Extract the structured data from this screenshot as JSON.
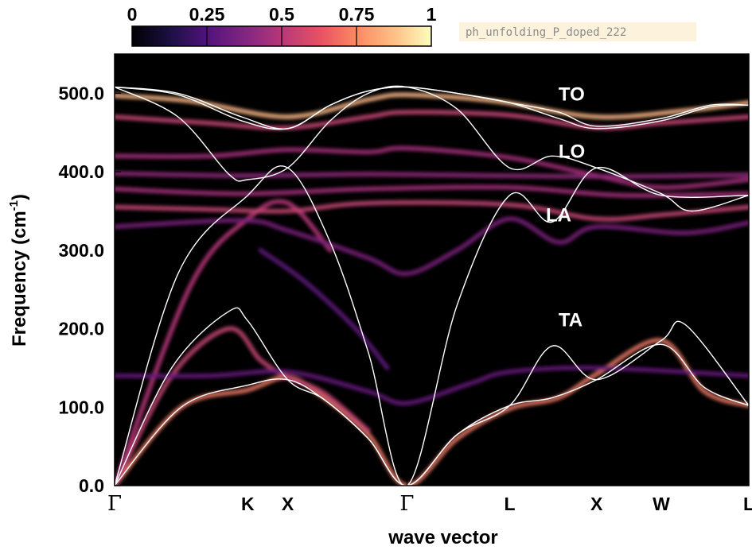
{
  "chart_data": {
    "type": "band-structure",
    "title": "ph_unfolding_P_doped_222",
    "xlabel": "wave vector",
    "ylabel": "Frequency",
    "ylabel_unit_base": "(cm",
    "ylabel_unit_exp": "-1",
    "ylabel_unit_close": ")",
    "ylim": [
      0,
      550
    ],
    "yticks": [
      0,
      100,
      200,
      300,
      400,
      500
    ],
    "ytick_labels": [
      "0.0",
      "100.0",
      "200.0",
      "300.0",
      "400.0",
      "500.0"
    ],
    "xticks": [
      {
        "label": "Γ",
        "pos": 0.0
      },
      {
        "label": "K",
        "pos": 0.21
      },
      {
        "label": "X",
        "pos": 0.273
      },
      {
        "label": "Γ",
        "pos": 0.461
      },
      {
        "label": "L",
        "pos": 0.623
      },
      {
        "label": "X",
        "pos": 0.76
      },
      {
        "label": "W",
        "pos": 0.862
      },
      {
        "label": "L",
        "pos": 1.0
      }
    ],
    "colorbar": {
      "range": [
        0,
        1
      ],
      "ticks": [
        0,
        0.25,
        0.5,
        0.75,
        1
      ],
      "tick_labels": [
        "0",
        "0.25",
        "0.5",
        "0.75",
        "1"
      ],
      "colormap": "magma"
    },
    "branch_labels": [
      {
        "text": "TO",
        "x": 0.7,
        "freq": 500
      },
      {
        "text": "LO",
        "x": 0.7,
        "freq": 427
      },
      {
        "text": "LA",
        "x": 0.68,
        "freq": 346
      },
      {
        "text": "TA",
        "x": 0.7,
        "freq": 212
      }
    ],
    "host_branches": [
      {
        "name": "TA1",
        "points": [
          [
            0.0,
            0
          ],
          [
            0.105,
            100
          ],
          [
            0.21,
            128
          ],
          [
            0.273,
            135
          ],
          [
            0.33,
            110
          ],
          [
            0.4,
            60
          ],
          [
            0.461,
            0
          ],
          [
            0.54,
            65
          ],
          [
            0.623,
            102
          ],
          [
            0.69,
            112
          ],
          [
            0.76,
            135
          ],
          [
            0.862,
            180
          ],
          [
            0.93,
            125
          ],
          [
            1.0,
            102
          ]
        ]
      },
      {
        "name": "TA2",
        "points": [
          [
            0.0,
            0
          ],
          [
            0.09,
            150
          ],
          [
            0.18,
            222
          ],
          [
            0.21,
            210
          ],
          [
            0.273,
            135
          ],
          [
            0.33,
            110
          ],
          [
            0.4,
            60
          ],
          [
            0.461,
            0
          ],
          [
            0.54,
            65
          ],
          [
            0.623,
            102
          ],
          [
            0.69,
            178
          ],
          [
            0.76,
            135
          ],
          [
            0.862,
            185
          ],
          [
            0.9,
            205
          ],
          [
            1.0,
            102
          ]
        ]
      },
      {
        "name": "LA",
        "points": [
          [
            0.0,
            0
          ],
          [
            0.1,
            270
          ],
          [
            0.21,
            370
          ],
          [
            0.273,
            405
          ],
          [
            0.34,
            310
          ],
          [
            0.4,
            170
          ],
          [
            0.461,
            0
          ],
          [
            0.54,
            230
          ],
          [
            0.623,
            370
          ],
          [
            0.69,
            336
          ],
          [
            0.76,
            405
          ],
          [
            0.862,
            370
          ],
          [
            1.0,
            370
          ]
        ]
      },
      {
        "name": "LO",
        "points": [
          [
            0.0,
            508
          ],
          [
            0.1,
            470
          ],
          [
            0.18,
            397
          ],
          [
            0.21,
            390
          ],
          [
            0.273,
            405
          ],
          [
            0.34,
            465
          ],
          [
            0.4,
            500
          ],
          [
            0.461,
            508
          ],
          [
            0.54,
            480
          ],
          [
            0.623,
            405
          ],
          [
            0.69,
            420
          ],
          [
            0.76,
            405
          ],
          [
            0.862,
            372
          ],
          [
            0.91,
            350
          ],
          [
            1.0,
            370
          ]
        ]
      },
      {
        "name": "TO1",
        "points": [
          [
            0.0,
            508
          ],
          [
            0.1,
            498
          ],
          [
            0.2,
            465
          ],
          [
            0.273,
            455
          ],
          [
            0.34,
            485
          ],
          [
            0.4,
            503
          ],
          [
            0.461,
            508
          ],
          [
            0.54,
            500
          ],
          [
            0.623,
            488
          ],
          [
            0.7,
            468
          ],
          [
            0.76,
            455
          ],
          [
            0.862,
            465
          ],
          [
            0.94,
            483
          ],
          [
            1.0,
            485
          ]
        ]
      },
      {
        "name": "TO2",
        "points": [
          [
            0.0,
            508
          ],
          [
            0.1,
            500
          ],
          [
            0.2,
            470
          ],
          [
            0.273,
            455
          ],
          [
            0.34,
            485
          ],
          [
            0.4,
            503
          ],
          [
            0.461,
            508
          ],
          [
            0.54,
            500
          ],
          [
            0.623,
            488
          ],
          [
            0.7,
            476
          ],
          [
            0.76,
            458
          ],
          [
            0.862,
            468
          ],
          [
            0.94,
            485
          ],
          [
            1.0,
            485
          ]
        ]
      }
    ],
    "spectral_bands": [
      {
        "name": "ta-glow",
        "intensity": 0.7,
        "points": [
          [
            0.0,
            0
          ],
          [
            0.105,
            100
          ],
          [
            0.21,
            122
          ],
          [
            0.273,
            138
          ],
          [
            0.33,
            112
          ],
          [
            0.4,
            65
          ],
          [
            0.461,
            0
          ],
          [
            0.54,
            60
          ],
          [
            0.623,
            98
          ],
          [
            0.7,
            112
          ],
          [
            0.76,
            142
          ],
          [
            0.862,
            185
          ],
          [
            0.93,
            120
          ],
          [
            1.0,
            102
          ]
        ]
      },
      {
        "name": "ta-upper",
        "intensity": 0.55,
        "points": [
          [
            0.0,
            0
          ],
          [
            0.09,
            140
          ],
          [
            0.18,
            200
          ],
          [
            0.23,
            160
          ],
          [
            0.273,
            138
          ],
          [
            0.33,
            118
          ],
          [
            0.4,
            70
          ]
        ]
      },
      {
        "name": "la-glow",
        "intensity": 0.5,
        "points": [
          [
            0.0,
            0
          ],
          [
            0.12,
            255
          ],
          [
            0.21,
            340
          ],
          [
            0.273,
            360
          ],
          [
            0.34,
            300
          ]
        ]
      },
      {
        "name": "to-glow",
        "intensity": 0.85,
        "points": [
          [
            0.0,
            497
          ],
          [
            0.12,
            490
          ],
          [
            0.273,
            470
          ],
          [
            0.4,
            492
          ],
          [
            0.461,
            498
          ],
          [
            0.6,
            490
          ],
          [
            0.76,
            470
          ],
          [
            0.9,
            478
          ],
          [
            1.0,
            488
          ]
        ]
      },
      {
        "name": "to-second",
        "intensity": 0.55,
        "points": [
          [
            0.0,
            470
          ],
          [
            0.15,
            462
          ],
          [
            0.273,
            456
          ],
          [
            0.4,
            470
          ],
          [
            0.461,
            476
          ],
          [
            0.623,
            472
          ],
          [
            0.76,
            456
          ],
          [
            0.862,
            462
          ],
          [
            1.0,
            470
          ]
        ]
      },
      {
        "name": "lo-glow",
        "intensity": 0.45,
        "points": [
          [
            0.0,
            420
          ],
          [
            0.15,
            420
          ],
          [
            0.273,
            428
          ],
          [
            0.4,
            425
          ],
          [
            0.461,
            430
          ],
          [
            0.623,
            418
          ],
          [
            0.76,
            395
          ],
          [
            0.862,
            380
          ],
          [
            1.0,
            390
          ]
        ]
      },
      {
        "name": "flat-400",
        "intensity": 0.4,
        "points": [
          [
            0.0,
            398
          ],
          [
            0.2,
            395
          ],
          [
            0.4,
            397
          ],
          [
            0.6,
            395
          ],
          [
            0.8,
            394
          ],
          [
            1.0,
            396
          ]
        ]
      },
      {
        "name": "flat-380",
        "intensity": 0.45,
        "points": [
          [
            0.0,
            378
          ],
          [
            0.2,
            372
          ],
          [
            0.4,
            378
          ],
          [
            0.623,
            380
          ],
          [
            0.8,
            370
          ],
          [
            1.0,
            372
          ]
        ]
      },
      {
        "name": "flat-355",
        "intensity": 0.55,
        "points": [
          [
            0.0,
            355
          ],
          [
            0.15,
            352
          ],
          [
            0.273,
            350
          ],
          [
            0.4,
            360
          ],
          [
            0.623,
            358
          ],
          [
            0.76,
            340
          ],
          [
            0.862,
            345
          ],
          [
            1.0,
            355
          ]
        ]
      },
      {
        "name": "mid-330",
        "intensity": 0.35,
        "points": [
          [
            0.0,
            330
          ],
          [
            0.2,
            338
          ],
          [
            0.273,
            325
          ],
          [
            0.4,
            290
          ],
          [
            0.461,
            270
          ],
          [
            0.54,
            300
          ],
          [
            0.623,
            340
          ],
          [
            0.7,
            310
          ],
          [
            0.76,
            330
          ],
          [
            0.9,
            322
          ],
          [
            1.0,
            335
          ]
        ]
      },
      {
        "name": "mid-260",
        "intensity": 0.28,
        "points": [
          [
            0.23,
            300
          ],
          [
            0.3,
            260
          ],
          [
            0.38,
            200
          ],
          [
            0.43,
            150
          ]
        ]
      },
      {
        "name": "low-150",
        "intensity": 0.3,
        "points": [
          [
            0.0,
            140
          ],
          [
            0.15,
            140
          ],
          [
            0.273,
            145
          ],
          [
            0.4,
            120
          ],
          [
            0.461,
            105
          ],
          [
            0.56,
            130
          ],
          [
            0.623,
            145
          ],
          [
            0.76,
            150
          ],
          [
            1.0,
            140
          ]
        ]
      }
    ]
  }
}
